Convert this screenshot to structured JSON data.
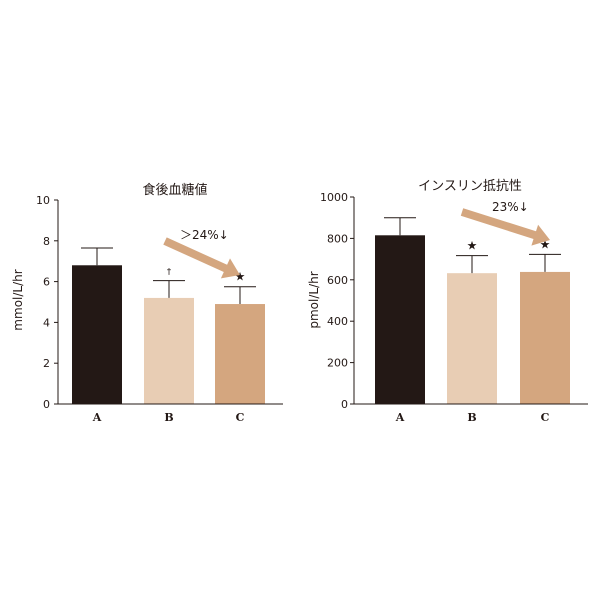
{
  "chart_data": [
    {
      "type": "bar",
      "title": "食後血糖値",
      "ylabel": "mmol/L/hr",
      "xlabel": "",
      "categories": [
        "A",
        "B",
        "C"
      ],
      "values": [
        6.8,
        5.2,
        4.9
      ],
      "errors": [
        0.85,
        0.85,
        0.85
      ],
      "ylim": [
        0,
        10
      ],
      "yticks": [
        "0",
        "2",
        "4",
        "6",
        "8",
        "10"
      ],
      "yticks_values": [
        0,
        2,
        4,
        6,
        8,
        10
      ],
      "bar_colors": [
        "#231815",
        "#e8cdb4",
        "#d4a67f"
      ],
      "markers": [
        "",
        "†",
        "★"
      ],
      "annotation": "＞24%↓",
      "arrow_color": "#d4a67f",
      "grid": false
    },
    {
      "type": "bar",
      "title": "インスリン抵抗性",
      "ylabel": "pmol/L/hr",
      "xlabel": "",
      "categories": [
        "A",
        "B",
        "C"
      ],
      "values": [
        815,
        632,
        638
      ],
      "errors": [
        85,
        85,
        85
      ],
      "ylim": [
        0,
        1000
      ],
      "yticks": [
        "0",
        "200",
        "400",
        "600",
        "800",
        "1000"
      ],
      "yticks_values": [
        0,
        200,
        400,
        600,
        800,
        1000
      ],
      "bar_colors": [
        "#231815",
        "#e8cdb4",
        "#d4a67f"
      ],
      "markers": [
        "",
        "★",
        "★"
      ],
      "annotation": "23%↓",
      "arrow_color": "#d4a67f",
      "grid": false
    }
  ]
}
